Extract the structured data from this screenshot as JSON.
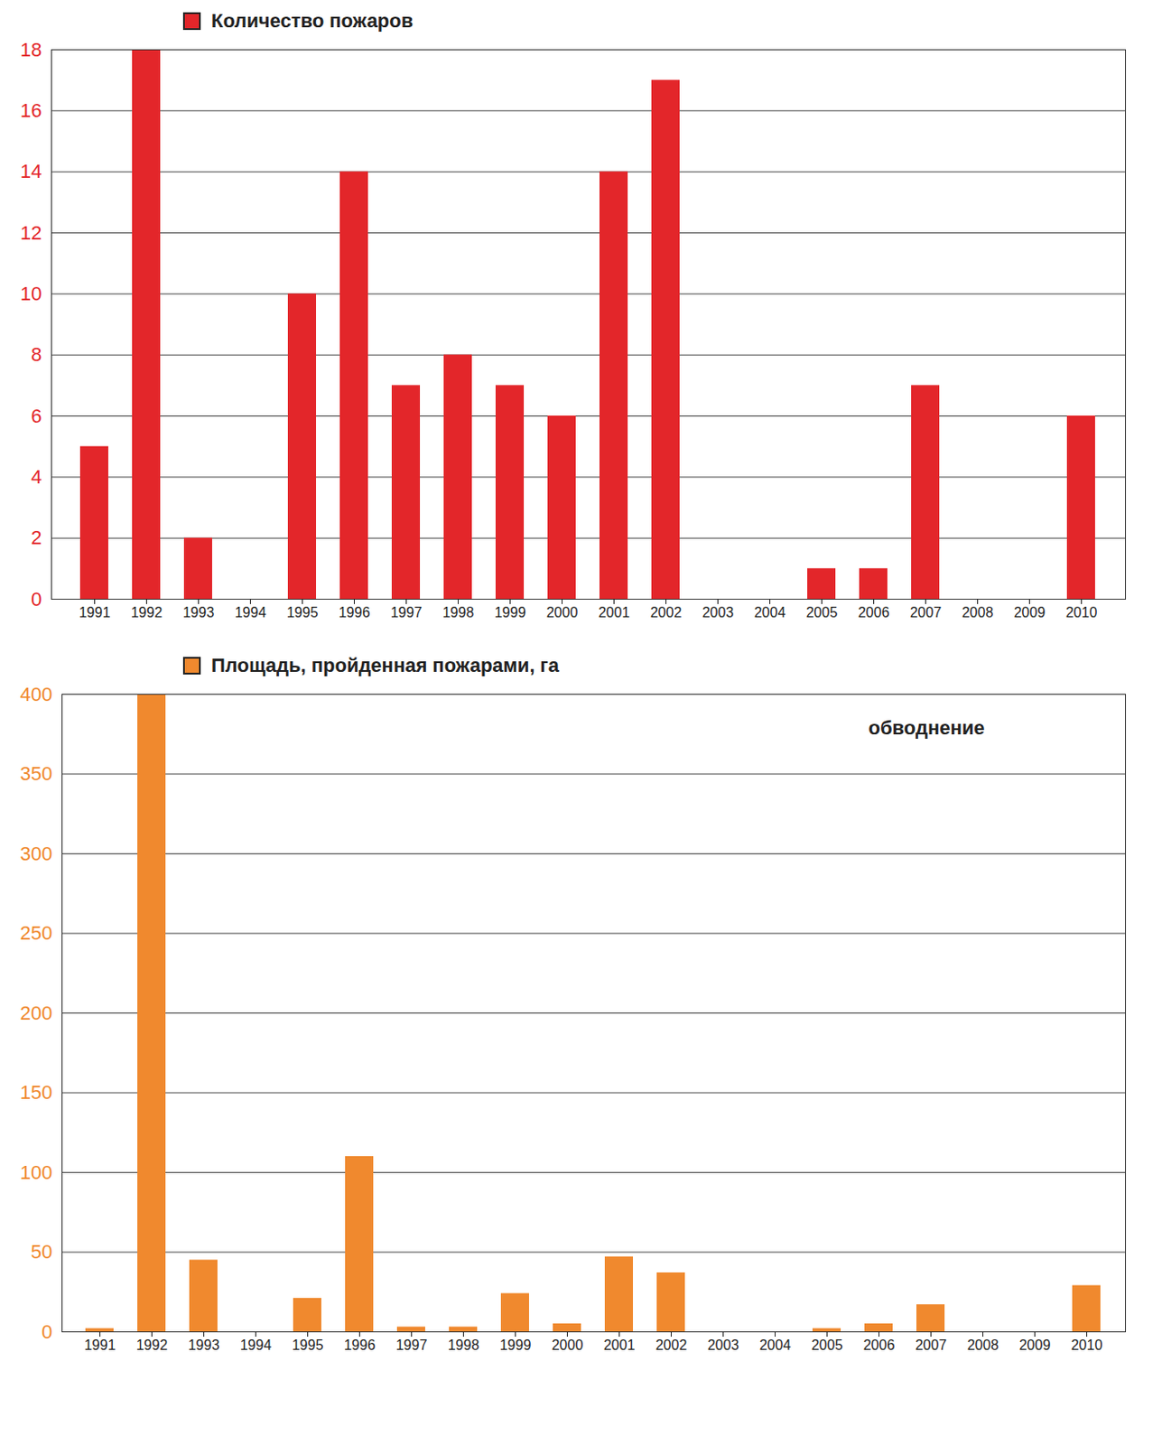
{
  "chart_data": [
    {
      "type": "bar",
      "categories": [
        "1991",
        "1992",
        "1993",
        "1994",
        "1995",
        "1996",
        "1997",
        "1998",
        "1999",
        "2000",
        "2001",
        "2002",
        "2003",
        "2004",
        "2005",
        "2006",
        "2007",
        "2008",
        "2009",
        "2010"
      ],
      "series": [
        {
          "name": "Количество пожаров",
          "color": "#e3262a",
          "values": [
            5,
            18,
            2,
            0,
            10,
            14,
            7,
            8,
            7,
            6,
            14,
            17,
            0,
            0,
            1,
            1,
            7,
            0,
            0,
            6
          ]
        }
      ],
      "ylim": [
        0,
        18
      ],
      "yticks": [
        0,
        2,
        4,
        6,
        8,
        10,
        12,
        14,
        16,
        18
      ],
      "grid": true,
      "legend": "top"
    },
    {
      "type": "bar",
      "categories": [
        "1991",
        "1992",
        "1993",
        "1994",
        "1995",
        "1996",
        "1997",
        "1998",
        "1999",
        "2000",
        "2001",
        "2002",
        "2003",
        "2004",
        "2005",
        "2006",
        "2007",
        "2008",
        "2009",
        "2010"
      ],
      "series": [
        {
          "name": "Площадь, пройденная пожарами, га",
          "color": "#f0892e",
          "values": [
            2,
            400,
            45,
            0,
            21,
            110,
            3,
            3,
            24,
            5,
            47,
            37,
            0,
            0,
            2,
            5,
            17,
            0,
            0,
            29
          ]
        }
      ],
      "ylim": [
        0,
        400
      ],
      "yticks": [
        0,
        50,
        100,
        150,
        200,
        250,
        300,
        350,
        400
      ],
      "annotation": "обводнение",
      "grid": true,
      "legend": "top"
    }
  ]
}
